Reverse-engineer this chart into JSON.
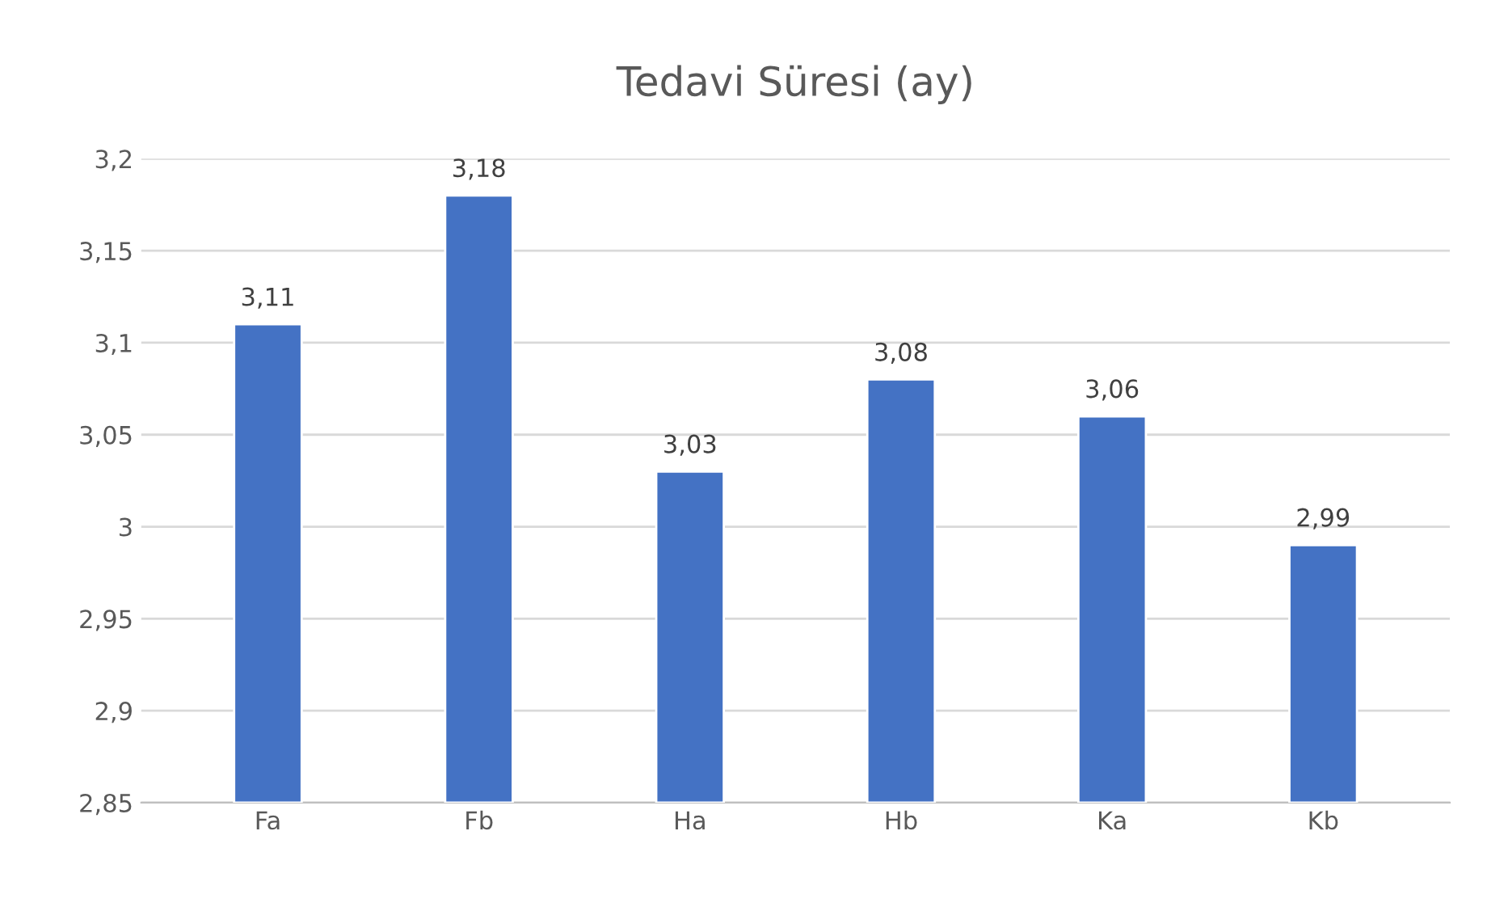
{
  "chart_data": {
    "type": "bar",
    "title": "Tedavi Süresi (ay)",
    "categories": [
      "Fa",
      "Fb",
      "Ha",
      "Hb",
      "Ka",
      "Kb"
    ],
    "values": [
      3.11,
      3.18,
      3.03,
      3.08,
      3.06,
      2.99
    ],
    "value_labels": [
      "3,11",
      "3,18",
      "3,03",
      "3,08",
      "3,06",
      "2,99"
    ],
    "color": "#4472c4",
    "ylim": [
      2.85,
      3.2
    ],
    "yticks": [
      {
        "value": 2.85,
        "label": "2,85"
      },
      {
        "value": 2.9,
        "label": "2,9"
      },
      {
        "value": 2.95,
        "label": "2,95"
      },
      {
        "value": 3,
        "label": "3"
      },
      {
        "value": 3.05,
        "label": "3,05"
      },
      {
        "value": 3.1,
        "label": "3,1"
      },
      {
        "value": 3.15,
        "label": "3,15"
      },
      {
        "value": 3.2,
        "label": "3,2"
      }
    ],
    "grid": "y"
  }
}
